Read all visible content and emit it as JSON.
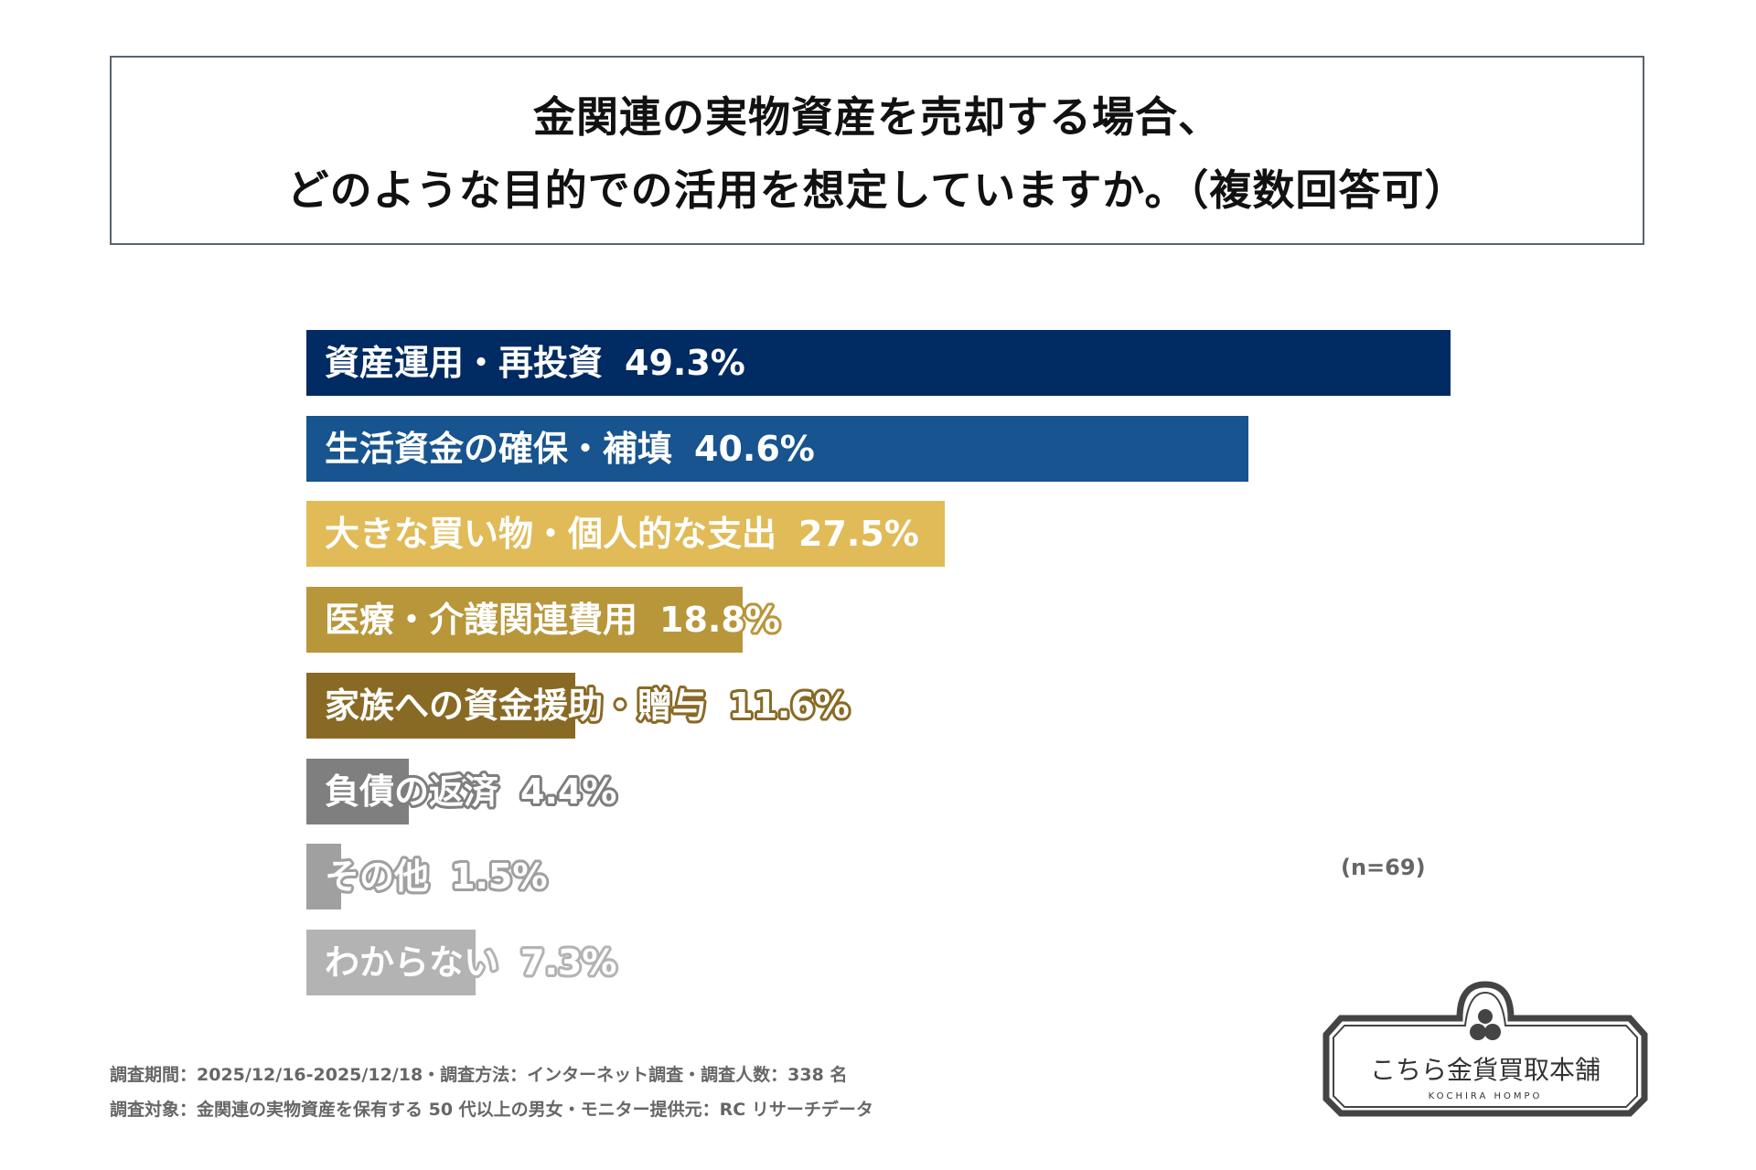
{
  "title_lines": [
    "金関連の実物資産を売却する場合、",
    "どのような目的での活用を想定していますか。（複数回答可）"
  ],
  "chart_data": {
    "type": "bar",
    "orientation": "horizontal",
    "categories": [
      "資産運用・再投資",
      "生活資金の確保・補填",
      "大きな買い物・個人的な支出",
      "医療・介護関連費用",
      "家族への資金援助・贈与",
      "負債の返済",
      "その他",
      "わからない"
    ],
    "values": [
      49.3,
      40.6,
      27.5,
      18.8,
      11.6,
      4.4,
      1.5,
      7.3
    ],
    "value_labels": [
      "49.3%",
      "40.6%",
      "27.5%",
      "18.8%",
      "11.6%",
      "4.4%",
      "1.5%",
      "7.3%"
    ],
    "colors": [
      "#002b63",
      "#18548f",
      "#e0bb58",
      "#b8963a",
      "#896a25",
      "#7f7f7f",
      "#a0a0a0",
      "#b3b3b3"
    ],
    "grid": false,
    "note": "(n=69)"
  },
  "footer": [
    "調査期間：2025/12/16-2025/12/18・調査方法：インターネット調査・調査人数：338 名",
    "調査対象：金関連の実物資産を保有する 50 代以上の男女・モニター提供元：RC リサーチデータ"
  ],
  "logo": {
    "name": "こちら金貨買取本舗",
    "sub": "KOCHIRA HOMPO"
  }
}
